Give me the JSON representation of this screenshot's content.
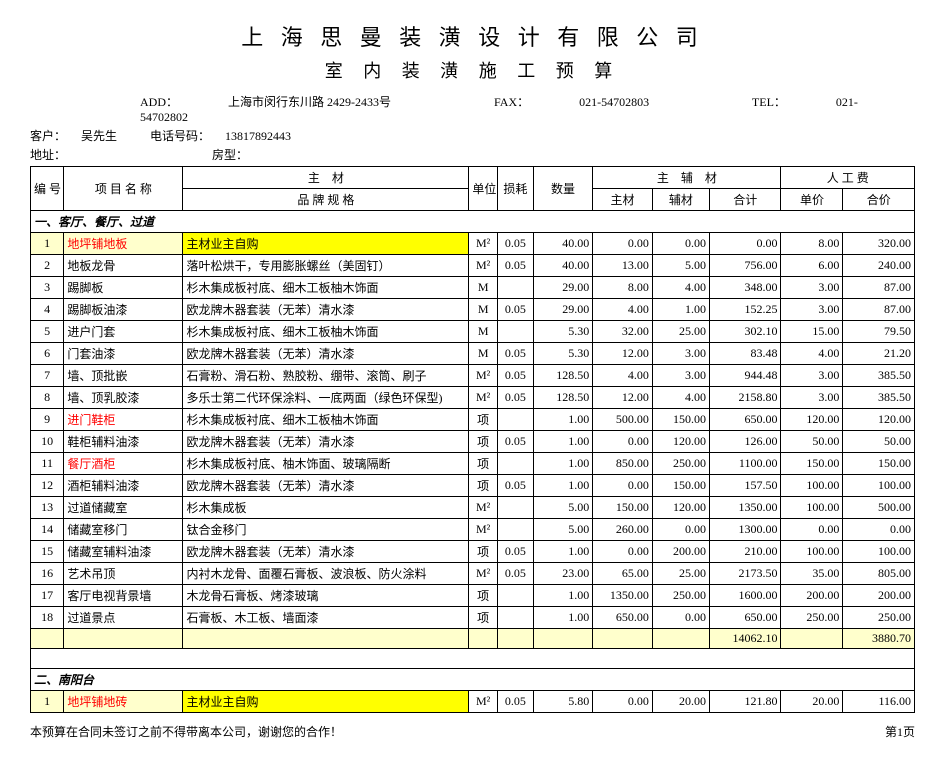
{
  "header": {
    "company": "上 海 思 曼 装 潢 设 计 有 限 公 司",
    "subtitle": "室 内 装 潢 施 工 预 算",
    "addr_label": "ADD：",
    "addr": "上海市闵行东川路 2429-2433号",
    "fax_label": "FAX：",
    "fax": "021-54702803",
    "tel_label": "TEL：",
    "tel": "021-54702802",
    "cust_label": "客户：",
    "cust": "吴先生",
    "phone_label": "电话号码：",
    "phone": "13817892443",
    "addr2_label": "地址：",
    "room_label": "房型："
  },
  "cols": {
    "no": "编 号",
    "name": "项 目 名 称",
    "spec_top": "主　材",
    "spec_bot": "品 牌  规 格",
    "unit": "单位",
    "loss": "损耗",
    "qty": "数量",
    "mat_group": "主　辅　材",
    "main": "主材",
    "aux": "辅材",
    "total": "合计",
    "labor_group": "人 工 费",
    "lprice": "单价",
    "ltotal": "合价"
  },
  "sections": [
    {
      "title": "一、客厅、餐厅、过道",
      "rows": [
        {
          "no": "1",
          "name": "地坪铺地板",
          "spec": "主材业主自购",
          "unit": "M²",
          "loss": "0.05",
          "qty": "40.00",
          "main": "0.00",
          "aux": "0.00",
          "total": "0.00",
          "lp": "8.00",
          "lt": "320.00",
          "name_red": true,
          "spec_hl": true
        },
        {
          "no": "2",
          "name": "地板龙骨",
          "spec": "落叶松烘干，专用膨胀螺丝（美固钉）",
          "unit": "M²",
          "loss": "0.05",
          "qty": "40.00",
          "main": "13.00",
          "aux": "5.00",
          "total": "756.00",
          "lp": "6.00",
          "lt": "240.00"
        },
        {
          "no": "3",
          "name": "踢脚板",
          "spec": "杉木集成板衬底、细木工板柚木饰面",
          "unit": "M",
          "loss": "",
          "qty": "29.00",
          "main": "8.00",
          "aux": "4.00",
          "total": "348.00",
          "lp": "3.00",
          "lt": "87.00"
        },
        {
          "no": "4",
          "name": "踢脚板油漆",
          "spec": "欧龙牌木器套装（无苯）清水漆",
          "unit": "M",
          "loss": "0.05",
          "qty": "29.00",
          "main": "4.00",
          "aux": "1.00",
          "total": "152.25",
          "lp": "3.00",
          "lt": "87.00"
        },
        {
          "no": "5",
          "name": "进户门套",
          "spec": "杉木集成板衬底、细木工板柚木饰面",
          "unit": "M",
          "loss": "",
          "qty": "5.30",
          "main": "32.00",
          "aux": "25.00",
          "total": "302.10",
          "lp": "15.00",
          "lt": "79.50"
        },
        {
          "no": "6",
          "name": "门套油漆",
          "spec": "欧龙牌木器套装（无苯）清水漆",
          "unit": "M",
          "loss": "0.05",
          "qty": "5.30",
          "main": "12.00",
          "aux": "3.00",
          "total": "83.48",
          "lp": "4.00",
          "lt": "21.20"
        },
        {
          "no": "7",
          "name": "墙、顶批嵌",
          "spec": "石膏粉、滑石粉、熟胶粉、绷带、滚筒、刷子",
          "unit": "M²",
          "loss": "0.05",
          "qty": "128.50",
          "main": "4.00",
          "aux": "3.00",
          "total": "944.48",
          "lp": "3.00",
          "lt": "385.50"
        },
        {
          "no": "8",
          "name": "墙、顶乳胶漆",
          "spec": "多乐士第二代环保涂料、一底两面（绿色环保型)",
          "unit": "M²",
          "loss": "0.05",
          "qty": "128.50",
          "main": "12.00",
          "aux": "4.00",
          "total": "2158.80",
          "lp": "3.00",
          "lt": "385.50"
        },
        {
          "no": "9",
          "name": "进门鞋柜",
          "spec": "杉木集成板衬底、细木工板柚木饰面",
          "unit": "项",
          "loss": "",
          "qty": "1.00",
          "main": "500.00",
          "aux": "150.00",
          "total": "650.00",
          "lp": "120.00",
          "lt": "120.00",
          "name_red": true
        },
        {
          "no": "10",
          "name": "鞋柜辅料油漆",
          "spec": "欧龙牌木器套装（无苯）清水漆",
          "unit": "项",
          "loss": "0.05",
          "qty": "1.00",
          "main": "0.00",
          "aux": "120.00",
          "total": "126.00",
          "lp": "50.00",
          "lt": "50.00"
        },
        {
          "no": "11",
          "name": "餐厅酒柜",
          "spec": "杉木集成板衬底、柚木饰面、玻璃隔断",
          "unit": "项",
          "loss": "",
          "qty": "1.00",
          "main": "850.00",
          "aux": "250.00",
          "total": "1100.00",
          "lp": "150.00",
          "lt": "150.00",
          "name_red": true
        },
        {
          "no": "12",
          "name": "酒柜辅料油漆",
          "spec": "欧龙牌木器套装（无苯）清水漆",
          "unit": "项",
          "loss": "0.05",
          "qty": "1.00",
          "main": "0.00",
          "aux": "150.00",
          "total": "157.50",
          "lp": "100.00",
          "lt": "100.00"
        },
        {
          "no": "13",
          "name": "过道储藏室",
          "spec": "杉木集成板",
          "unit": "M²",
          "loss": "",
          "qty": "5.00",
          "main": "150.00",
          "aux": "120.00",
          "total": "1350.00",
          "lp": "100.00",
          "lt": "500.00"
        },
        {
          "no": "14",
          "name": "储藏室移门",
          "spec": "钛合金移门",
          "unit": "M²",
          "loss": "",
          "qty": "5.00",
          "main": "260.00",
          "aux": "0.00",
          "total": "1300.00",
          "lp": "0.00",
          "lt": "0.00"
        },
        {
          "no": "15",
          "name": "储藏室辅料油漆",
          "spec": "欧龙牌木器套装（无苯）清水漆",
          "unit": "项",
          "loss": "0.05",
          "qty": "1.00",
          "main": "0.00",
          "aux": "200.00",
          "total": "210.00",
          "lp": "100.00",
          "lt": "100.00"
        },
        {
          "no": "16",
          "name": "艺术吊顶",
          "spec": "内衬木龙骨、面覆石膏板、波浪板、防火涂料",
          "unit": "M²",
          "loss": "0.05",
          "qty": "23.00",
          "main": "65.00",
          "aux": "25.00",
          "total": "2173.50",
          "lp": "35.00",
          "lt": "805.00"
        },
        {
          "no": "17",
          "name": "客厅电视背景墙",
          "spec": "木龙骨石膏板、烤漆玻璃",
          "unit": "项",
          "loss": "",
          "qty": "1.00",
          "main": "1350.00",
          "aux": "250.00",
          "total": "1600.00",
          "lp": "200.00",
          "lt": "200.00"
        },
        {
          "no": "18",
          "name": "过道景点",
          "spec": "石膏板、木工板、墙面漆",
          "unit": "项",
          "loss": "",
          "qty": "1.00",
          "main": "650.00",
          "aux": "0.00",
          "total": "650.00",
          "lp": "250.00",
          "lt": "250.00"
        }
      ],
      "subtotal": {
        "total": "14062.10",
        "lt": "3880.70"
      }
    },
    {
      "title": "二、南阳台",
      "rows": [
        {
          "no": "1",
          "name": "地坪铺地砖",
          "spec": "主材业主自购",
          "unit": "M²",
          "loss": "0.05",
          "qty": "5.80",
          "main": "0.00",
          "aux": "20.00",
          "total": "121.80",
          "lp": "20.00",
          "lt": "116.00",
          "name_red": true,
          "spec_hl": true
        }
      ]
    }
  ],
  "footer": {
    "note": "本预算在合同未签订之前不得带离本公司，谢谢您的合作！",
    "pageno": "第1页"
  }
}
